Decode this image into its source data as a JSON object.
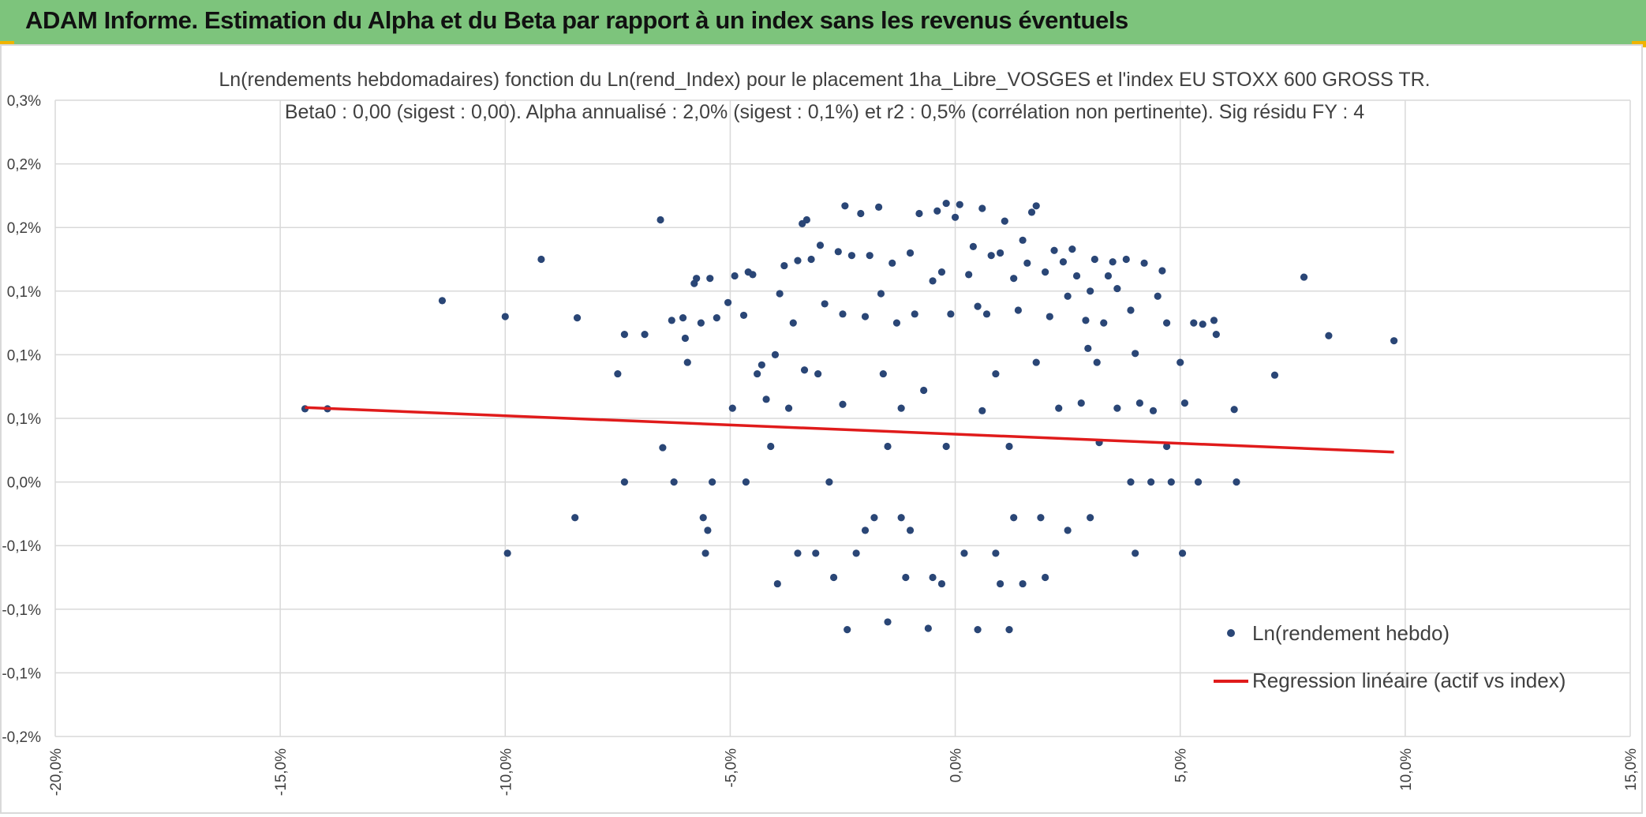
{
  "header": {
    "title": "ADAM Informe. Estimation du Alpha et du Beta par rapport à un index sans les revenus éventuels",
    "background": "#7dc47c"
  },
  "chart_data": {
    "type": "scatter",
    "title": "Ln(rendements hebdomadaires) fonction du Ln(rend_Index) pour le placement 1ha_Libre_VOSGES et l'index EU STOXX 600 GROSS TR.",
    "subtitle": "Beta0 : 0,00 (sigest : 0,00). Alpha annualisé : 2,0% (sigest : 0,1%) et r2 : 0,5% (corrélation non pertinente). Sig résidu FY : 4",
    "xlabel": "",
    "ylabel": "",
    "xlim": [
      -0.2,
      0.15
    ],
    "ylim": [
      -0.2,
      0.3
    ],
    "x_ticks": [
      -0.2,
      -0.15,
      -0.1,
      -0.05,
      0.0,
      0.05,
      0.1,
      0.15
    ],
    "x_tick_labels": [
      "-20,0%",
      "-15,0%",
      "-10,0%",
      "-5,0%",
      "0,0%",
      "5,0%",
      "10,0%",
      "15,0%"
    ],
    "y_ticks": [
      -0.2,
      -0.15,
      -0.1,
      -0.05,
      0.0,
      0.05,
      0.1,
      0.15,
      0.2,
      0.25,
      0.3
    ],
    "y_tick_labels": [
      "-0,2%",
      "-0,1%",
      "-0,1%",
      "-0,1%",
      "0,0%",
      "0,1%",
      "0,1%",
      "0,1%",
      "0,2%",
      "0,2%",
      "0,3%"
    ],
    "grid": true,
    "legend_position": "bottom-right",
    "series": [
      {
        "name": "Ln(rendement hebdo)",
        "kind": "scatter",
        "color": "#2a4676",
        "points": [
          [
            -0.1445,
            0.0575
          ],
          [
            -0.1395,
            0.0575
          ],
          [
            -0.114,
            0.1425
          ],
          [
            -0.1,
            0.13
          ],
          [
            -0.0995,
            -0.056
          ],
          [
            -0.092,
            0.175
          ],
          [
            -0.084,
            0.129
          ],
          [
            -0.0845,
            -0.028
          ],
          [
            -0.075,
            0.085
          ],
          [
            -0.0735,
            0.116
          ],
          [
            -0.0735,
            0.0
          ],
          [
            -0.069,
            0.116
          ],
          [
            -0.0655,
            0.206
          ],
          [
            -0.065,
            0.027
          ],
          [
            -0.063,
            0.127
          ],
          [
            -0.0625,
            0.0
          ],
          [
            -0.0605,
            0.129
          ],
          [
            -0.06,
            0.113
          ],
          [
            -0.0595,
            0.094
          ],
          [
            -0.058,
            0.156
          ],
          [
            -0.0575,
            0.16
          ],
          [
            -0.0565,
            0.125
          ],
          [
            -0.056,
            -0.028
          ],
          [
            -0.0555,
            -0.056
          ],
          [
            -0.055,
            -0.038
          ],
          [
            -0.0545,
            0.16
          ],
          [
            -0.054,
            0.0
          ],
          [
            -0.053,
            0.129
          ],
          [
            -0.0505,
            0.141
          ],
          [
            -0.0495,
            0.058
          ],
          [
            -0.049,
            0.162
          ],
          [
            -0.047,
            0.131
          ],
          [
            -0.0465,
            0.0
          ],
          [
            -0.046,
            0.165
          ],
          [
            -0.045,
            0.163
          ],
          [
            -0.044,
            0.085
          ],
          [
            -0.043,
            0.092
          ],
          [
            -0.042,
            0.065
          ],
          [
            -0.041,
            0.028
          ],
          [
            -0.04,
            0.1
          ],
          [
            -0.0395,
            -0.08
          ],
          [
            -0.039,
            0.148
          ],
          [
            -0.038,
            0.17
          ],
          [
            -0.037,
            0.058
          ],
          [
            -0.036,
            0.125
          ],
          [
            -0.035,
            0.174
          ],
          [
            -0.034,
            0.203
          ],
          [
            -0.0335,
            0.088
          ],
          [
            -0.033,
            0.206
          ],
          [
            -0.032,
            0.175
          ],
          [
            -0.031,
            -0.056
          ],
          [
            -0.0305,
            0.085
          ],
          [
            -0.03,
            0.186
          ],
          [
            -0.029,
            0.14
          ],
          [
            -0.028,
            0.0
          ],
          [
            -0.027,
            -0.075
          ],
          [
            -0.026,
            0.181
          ],
          [
            -0.025,
            0.132
          ],
          [
            -0.0245,
            0.217
          ],
          [
            -0.024,
            -0.116
          ],
          [
            -0.023,
            0.178
          ],
          [
            -0.022,
            -0.056
          ],
          [
            -0.021,
            0.211
          ],
          [
            -0.02,
            0.13
          ],
          [
            -0.019,
            0.178
          ],
          [
            -0.018,
            -0.028
          ],
          [
            -0.017,
            0.216
          ],
          [
            -0.0165,
            0.148
          ],
          [
            -0.016,
            0.085
          ],
          [
            -0.015,
            -0.11
          ],
          [
            -0.014,
            0.172
          ],
          [
            -0.013,
            0.125
          ],
          [
            -0.012,
            0.058
          ],
          [
            -0.011,
            -0.075
          ],
          [
            -0.01,
            0.18
          ],
          [
            -0.009,
            0.132
          ],
          [
            -0.008,
            0.211
          ],
          [
            -0.007,
            0.072
          ],
          [
            -0.006,
            -0.115
          ],
          [
            -0.005,
            0.158
          ],
          [
            -0.004,
            0.213
          ],
          [
            -0.003,
            0.165
          ],
          [
            -0.002,
            0.219
          ],
          [
            -0.001,
            0.132
          ],
          [
            0.0,
            0.208
          ],
          [
            0.001,
            0.218
          ],
          [
            0.002,
            -0.056
          ],
          [
            0.003,
            0.163
          ],
          [
            0.004,
            0.185
          ],
          [
            0.005,
            0.138
          ],
          [
            0.006,
            0.215
          ],
          [
            0.007,
            0.132
          ],
          [
            0.008,
            0.178
          ],
          [
            0.009,
            0.085
          ],
          [
            0.01,
            0.18
          ],
          [
            0.011,
            0.205
          ],
          [
            0.012,
            -0.116
          ],
          [
            0.013,
            0.16
          ],
          [
            0.014,
            0.135
          ],
          [
            0.015,
            0.19
          ],
          [
            0.016,
            0.172
          ],
          [
            0.017,
            0.212
          ],
          [
            0.018,
            0.217
          ],
          [
            0.019,
            -0.028
          ],
          [
            0.02,
            0.165
          ],
          [
            0.021,
            0.13
          ],
          [
            0.022,
            0.182
          ],
          [
            0.023,
            0.058
          ],
          [
            0.024,
            0.173
          ],
          [
            0.025,
            0.146
          ],
          [
            0.026,
            0.183
          ],
          [
            0.027,
            0.162
          ],
          [
            0.028,
            0.062
          ],
          [
            0.029,
            0.127
          ],
          [
            0.03,
            0.15
          ],
          [
            0.031,
            0.175
          ],
          [
            0.032,
            0.031
          ],
          [
            0.033,
            0.125
          ],
          [
            0.034,
            0.162
          ],
          [
            0.035,
            0.173
          ],
          [
            0.036,
            0.152
          ],
          [
            0.038,
            0.175
          ],
          [
            0.039,
            0.135
          ],
          [
            0.04,
            0.101
          ],
          [
            0.041,
            0.062
          ],
          [
            0.042,
            0.172
          ],
          [
            0.044,
            0.056
          ],
          [
            0.045,
            0.146
          ],
          [
            0.046,
            0.166
          ],
          [
            0.047,
            0.125
          ],
          [
            0.048,
            0.0
          ],
          [
            0.05,
            0.094
          ],
          [
            0.051,
            0.062
          ],
          [
            0.0505,
            -0.056
          ],
          [
            0.053,
            0.125
          ],
          [
            0.055,
            0.124
          ],
          [
            0.0575,
            0.127
          ],
          [
            0.058,
            0.116
          ],
          [
            0.062,
            0.057
          ],
          [
            0.0625,
            0.0
          ],
          [
            0.071,
            0.084
          ],
          [
            0.0775,
            0.161
          ],
          [
            0.083,
            0.115
          ],
          [
            0.0975,
            0.111
          ],
          [
            -0.035,
            -0.056
          ],
          [
            -0.02,
            -0.038
          ],
          [
            0.01,
            -0.08
          ],
          [
            0.02,
            -0.075
          ],
          [
            0.03,
            -0.028
          ],
          [
            -0.01,
            -0.038
          ],
          [
            0.005,
            -0.116
          ],
          [
            0.015,
            -0.08
          ],
          [
            -0.005,
            -0.075
          ],
          [
            0.025,
            -0.038
          ],
          [
            0.04,
            -0.056
          ],
          [
            0.039,
            0.0
          ],
          [
            0.0435,
            0.0
          ],
          [
            0.054,
            0.0
          ],
          [
            0.047,
            0.028
          ],
          [
            0.036,
            0.058
          ],
          [
            0.0315,
            0.094
          ],
          [
            0.0295,
            0.105
          ],
          [
            -0.002,
            0.028
          ],
          [
            0.012,
            0.028
          ],
          [
            -0.015,
            0.028
          ],
          [
            0.006,
            0.056
          ],
          [
            0.018,
            0.094
          ],
          [
            -0.025,
            0.061
          ],
          [
            0.013,
            -0.028
          ],
          [
            -0.012,
            -0.028
          ],
          [
            0.009,
            -0.056
          ],
          [
            -0.003,
            -0.08
          ]
        ]
      },
      {
        "name": "Regression linéaire (actif vs index)",
        "kind": "line",
        "color": "#e01b1b",
        "points": [
          [
            -0.1445,
            0.0585
          ],
          [
            0.0975,
            0.0235
          ]
        ]
      }
    ]
  },
  "legend": {
    "items": [
      {
        "label": "Ln(rendement hebdo)",
        "color": "#2a4676",
        "marker": "dot"
      },
      {
        "label": "Regression linéaire (actif vs index)",
        "color": "#e01b1b",
        "marker": "line"
      }
    ]
  }
}
